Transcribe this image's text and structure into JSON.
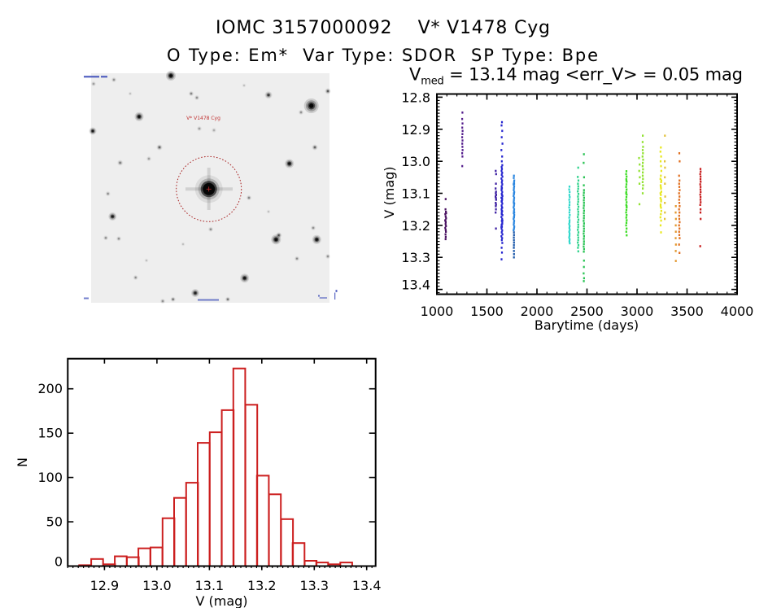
{
  "header": {
    "title": "IOMC 3157000092    V* V1478 Cyg",
    "subtitle": "O Type: Em*  Var Type: SDOR  SP Type: Bpe"
  },
  "image_panel": {
    "target_label": "V* V1478 Cyg",
    "aperture_color": "#a82020",
    "label_color": "#c03030",
    "background_color": "#eeeeee",
    "annotation_color": "#3848b8"
  },
  "chart_data": [
    {
      "type": "scatter",
      "title": {
        "symbol": "V",
        "subscript": "med",
        "text": " = 13.14 mag <err_V> = 0.05 mag"
      },
      "xlabel": "Barytime (days)",
      "ylabel": "V (mag)",
      "xlim": [
        1000,
        4000
      ],
      "ylim": [
        12.79,
        13.415
      ],
      "y_inverted": true,
      "grid": false,
      "xticks": [
        1000,
        1500,
        2000,
        2500,
        3000,
        3500,
        4000
      ],
      "xtick_labels": [
        "1000",
        "1500",
        "2000",
        "2500",
        "3000",
        "3500",
        "4000"
      ],
      "x_minor_step": 100,
      "yticks": [
        12.8,
        12.9,
        13.0,
        13.1,
        13.2,
        13.3,
        13.4
      ],
      "ytick_labels": [
        "12.8",
        "12.9",
        "13.0",
        "13.1",
        "13.2",
        "13.3",
        "13.4"
      ],
      "y_minor_step": 0.01,
      "series": [
        {
          "color": "#4a1262",
          "x": [
            1088,
            1086,
            1090,
            1084,
            1088,
            1092,
            1085,
            1089,
            1087,
            1091,
            1084,
            1088,
            1090,
            1086,
            1089,
            1087,
            1093,
            1083
          ],
          "y": [
            13.118,
            13.15,
            13.158,
            13.165,
            13.172,
            13.178,
            13.184,
            13.19,
            13.196,
            13.202,
            13.208,
            13.214,
            13.22,
            13.228,
            13.236,
            13.243,
            13.162,
            13.185
          ]
        },
        {
          "color": "#56208e",
          "x": [
            1255,
            1253,
            1256,
            1254,
            1257,
            1255,
            1253,
            1256,
            1254,
            1255,
            1257,
            1253,
            1255,
            1254
          ],
          "y": [
            12.848,
            12.868,
            12.882,
            12.895,
            12.905,
            12.915,
            12.925,
            12.935,
            12.945,
            12.955,
            12.965,
            12.975,
            12.985,
            13.015
          ]
        },
        {
          "color": "#3c1ea2",
          "x": [
            1588,
            1592,
            1590,
            1587,
            1591,
            1589,
            1593,
            1586,
            1590,
            1592,
            1588,
            1591,
            1589,
            1590,
            1587,
            1590
          ],
          "y": [
            13.03,
            13.04,
            13.07,
            13.085,
            13.095,
            13.1,
            13.105,
            13.11,
            13.115,
            13.12,
            13.13,
            13.135,
            13.14,
            13.15,
            13.16,
            13.21
          ]
        },
        {
          "color": "#2626d0",
          "x": [
            1650,
            1646,
            1653,
            1648,
            1655,
            1645,
            1652,
            1649,
            1654,
            1647,
            1650,
            1646,
            1653,
            1648,
            1655,
            1645,
            1652,
            1649,
            1654,
            1647,
            1650,
            1646,
            1653,
            1648,
            1655,
            1645,
            1652,
            1649,
            1654,
            1647,
            1650,
            1646,
            1653,
            1648,
            1655,
            1645,
            1652,
            1649,
            1654,
            1647,
            1650,
            1646,
            1653,
            1648,
            1655,
            1645,
            1652,
            1649,
            1654,
            1647,
            1650,
            1646,
            1653,
            1648,
            1655,
            1645,
            1652,
            1649,
            1654,
            1647,
            1650,
            1646
          ],
          "y": [
            12.878,
            12.888,
            12.905,
            12.925,
            12.945,
            12.965,
            12.985,
            13.0,
            13.012,
            13.018,
            13.024,
            13.03,
            13.036,
            13.042,
            13.048,
            13.054,
            13.06,
            13.066,
            13.072,
            13.078,
            13.084,
            13.09,
            13.096,
            13.102,
            13.108,
            13.114,
            13.12,
            13.126,
            13.132,
            13.138,
            13.144,
            13.15,
            13.156,
            13.162,
            13.168,
            13.174,
            13.18,
            13.186,
            13.192,
            13.198,
            13.204,
            13.21,
            13.216,
            13.222,
            13.228,
            13.234,
            13.24,
            13.246,
            13.255,
            13.085,
            13.105,
            13.125,
            13.145,
            13.165,
            13.185,
            13.205,
            13.115,
            13.155,
            13.195,
            13.27,
            13.285,
            13.306
          ]
        },
        {
          "color": "#2a86e0",
          "x": [
            1770,
            1768,
            1773,
            1771,
            1767,
            1772,
            1770,
            1768,
            1773,
            1771,
            1767,
            1772,
            1770,
            1768,
            1773,
            1771,
            1767,
            1772,
            1770,
            1768,
            1773,
            1771,
            1767,
            1772,
            1770,
            1768,
            1773,
            1771,
            1767,
            1772,
            1770,
            1768,
            1773,
            1771
          ],
          "y": [
            13.045,
            13.052,
            13.06,
            13.066,
            13.072,
            13.078,
            13.084,
            13.09,
            13.096,
            13.102,
            13.108,
            13.114,
            13.12,
            13.126,
            13.132,
            13.138,
            13.144,
            13.15,
            13.156,
            13.162,
            13.168,
            13.174,
            13.18,
            13.186,
            13.192,
            13.198,
            13.204,
            13.21,
            13.215,
            13.07,
            13.1,
            13.13,
            13.16,
            13.175
          ]
        },
        {
          "color": "#1c58aa",
          "x": [
            1770,
            1771,
            1769,
            1770,
            1771,
            1770,
            1769,
            1770,
            1771,
            1770
          ],
          "y": [
            13.222,
            13.23,
            13.238,
            13.246,
            13.254,
            13.262,
            13.27,
            13.28,
            13.29,
            13.3
          ]
        },
        {
          "color": "#30d8cc",
          "x": [
            2325,
            2322,
            2327,
            2324,
            2328,
            2323,
            2326,
            2325,
            2322,
            2327,
            2324,
            2328,
            2323,
            2326,
            2325,
            2322,
            2327,
            2324,
            2328,
            2323,
            2326,
            2325,
            2322,
            2327,
            2324,
            2328
          ],
          "y": [
            13.079,
            13.088,
            13.096,
            13.105,
            13.112,
            13.12,
            13.128,
            13.136,
            13.144,
            13.152,
            13.16,
            13.168,
            13.176,
            13.184,
            13.19,
            13.196,
            13.202,
            13.208,
            13.214,
            13.22,
            13.226,
            13.232,
            13.238,
            13.244,
            13.25,
            13.256
          ]
        },
        {
          "color": "#30d28c",
          "x": [
            2412,
            2408,
            2415,
            2410,
            2413,
            2412,
            2408,
            2415,
            2410,
            2413,
            2412,
            2408,
            2415,
            2410,
            2413,
            2412,
            2408,
            2415,
            2410,
            2413,
            2412,
            2408,
            2415,
            2410,
            2413,
            2412,
            2408,
            2415,
            2410,
            2413
          ],
          "y": [
            13.02,
            13.049,
            13.06,
            13.07,
            13.078,
            13.086,
            13.094,
            13.102,
            13.11,
            13.118,
            13.126,
            13.134,
            13.142,
            13.15,
            13.158,
            13.166,
            13.174,
            13.182,
            13.19,
            13.198,
            13.206,
            13.214,
            13.222,
            13.23,
            13.238,
            13.246,
            13.254,
            13.262,
            13.27,
            13.281
          ]
        },
        {
          "color": "#2cc456",
          "x": [
            2469,
            2467,
            2471,
            2468,
            2470,
            2469,
            2467,
            2471,
            2468,
            2470,
            2469,
            2467,
            2471,
            2468,
            2470,
            2469,
            2467,
            2471,
            2468,
            2470,
            2469,
            2467,
            2471,
            2468,
            2470,
            2469,
            2467,
            2471,
            2468,
            2470,
            2469,
            2467,
            2471,
            2468
          ],
          "y": [
            12.978,
            13.005,
            13.05,
            13.075,
            13.09,
            13.098,
            13.106,
            13.114,
            13.122,
            13.13,
            13.138,
            13.146,
            13.154,
            13.162,
            13.17,
            13.178,
            13.186,
            13.194,
            13.202,
            13.21,
            13.218,
            13.226,
            13.234,
            13.242,
            13.25,
            13.258,
            13.266,
            13.274,
            13.282,
            13.31,
            13.33,
            13.35,
            13.365,
            13.374
          ]
        },
        {
          "color": "#3cdc24",
          "x": [
            2894,
            2891,
            2896,
            2893,
            2897,
            2894,
            2891,
            2896,
            2893,
            2897,
            2894,
            2891,
            2896,
            2893,
            2897,
            2894,
            2891,
            2896,
            2893,
            2897,
            2894,
            2891,
            2896,
            2893,
            2897,
            2894,
            2891,
            2896
          ],
          "y": [
            13.031,
            13.04,
            13.048,
            13.056,
            13.064,
            13.072,
            13.08,
            13.088,
            13.096,
            13.104,
            13.112,
            13.12,
            13.128,
            13.136,
            13.144,
            13.152,
            13.16,
            13.168,
            13.176,
            13.184,
            13.192,
            13.2,
            13.21,
            13.22,
            13.231,
            13.06,
            13.1,
            13.14
          ]
        },
        {
          "color": "#92e232",
          "x": [
            3058,
            3056,
            3060,
            3057,
            3059,
            3055,
            3061,
            3058,
            3056,
            3060,
            3058,
            3057,
            3059,
            3056,
            3060,
            3058,
            3057,
            3024,
            3020,
            3026,
            3022,
            3028,
            3024
          ],
          "y": [
            12.92,
            12.94,
            12.955,
            12.965,
            12.975,
            12.985,
            12.995,
            13.005,
            13.015,
            13.025,
            13.035,
            13.045,
            13.055,
            13.065,
            13.075,
            13.085,
            13.1,
            13.134,
            12.99,
            13.01,
            13.03,
            13.05,
            13.07
          ]
        },
        {
          "color": "#e8e81e",
          "x": [
            3238,
            3234,
            3241,
            3236,
            3240,
            3243,
            3238,
            3234,
            3241,
            3236,
            3240,
            3243,
            3238,
            3234,
            3241,
            3236,
            3240,
            3243,
            3238,
            3234,
            3241,
            3236,
            3240,
            3243,
            3238,
            3234,
            3241,
            3236
          ],
          "y": [
            12.957,
            12.97,
            12.985,
            13.0,
            13.015,
            13.03,
            13.045,
            13.055,
            13.065,
            13.075,
            13.085,
            13.095,
            13.105,
            13.115,
            13.125,
            13.135,
            13.145,
            13.155,
            13.165,
            13.175,
            13.185,
            13.2,
            13.222,
            13.06,
            13.08,
            13.1,
            13.12,
            13.14
          ]
        },
        {
          "color": "#e2c23c",
          "x": [
            3279,
            3277,
            3280,
            3278,
            3279,
            3281,
            3278,
            3279,
            3277
          ],
          "y": [
            12.92,
            13.0,
            13.02,
            13.05,
            13.07,
            13.11,
            13.13,
            13.16,
            13.18
          ]
        },
        {
          "color": "#e06e1e",
          "x": [
            3423,
            3426,
            3420,
            3424,
            3421,
            3423,
            3426,
            3420,
            3424,
            3421,
            3423,
            3426,
            3420,
            3424,
            3421,
            3423,
            3426,
            3420,
            3424,
            3421,
            3423,
            3426,
            3420,
            3424
          ],
          "y": [
            12.975,
            13.0,
            13.045,
            13.06,
            13.07,
            13.08,
            13.09,
            13.1,
            13.11,
            13.12,
            13.13,
            13.14,
            13.15,
            13.16,
            13.17,
            13.18,
            13.19,
            13.2,
            13.21,
            13.22,
            13.23,
            13.24,
            13.26,
            13.286
          ]
        },
        {
          "color": "#e2962c",
          "x": [
            3388,
            3386,
            3389,
            3387,
            3388,
            3386,
            3389,
            3387,
            3388
          ],
          "y": [
            13.14,
            13.16,
            13.18,
            13.2,
            13.22,
            13.24,
            13.26,
            13.28,
            13.311
          ]
        },
        {
          "color": "#c81e1e",
          "x": [
            3634,
            3636,
            3632,
            3635,
            3634,
            3636,
            3632,
            3635,
            3634,
            3636,
            3632,
            3635,
            3634,
            3636,
            3632,
            3635,
            3634,
            3636,
            3632
          ],
          "y": [
            13.024,
            13.032,
            13.04,
            13.048,
            13.056,
            13.064,
            13.072,
            13.08,
            13.088,
            13.096,
            13.104,
            13.112,
            13.12,
            13.128,
            13.136,
            13.15,
            13.16,
            13.18,
            13.265
          ]
        }
      ]
    },
    {
      "type": "bar",
      "subtype": "histogram",
      "xlabel": "V (mag)",
      "ylabel": "N",
      "color": "#cc1f1f",
      "bin_width": 0.0226,
      "bin_centers": [
        12.863,
        12.886,
        12.909,
        12.931,
        12.954,
        12.976,
        12.999,
        13.022,
        13.044,
        13.067,
        13.089,
        13.112,
        13.135,
        13.157,
        13.18,
        13.202,
        13.225,
        13.248,
        13.27,
        13.293,
        13.315,
        13.338,
        13.361
      ],
      "counts": [
        1,
        8,
        2,
        11,
        10,
        20,
        21,
        54,
        77,
        94,
        139,
        151,
        176,
        223,
        182,
        102,
        81,
        53,
        26,
        6,
        4,
        2,
        4
      ],
      "xlim": [
        12.83,
        13.417
      ],
      "ylim": [
        0,
        234
      ],
      "grid": false,
      "xticks": [
        12.9,
        13.0,
        13.1,
        13.2,
        13.3,
        13.4
      ],
      "xtick_labels": [
        "12.9",
        "13.0",
        "13.1",
        "13.2",
        "13.3",
        "13.4"
      ],
      "x_minor_step": 0.01,
      "yticks": [
        0,
        50,
        100,
        150,
        200
      ],
      "ytick_labels": [
        "0",
        "50",
        "100",
        "150",
        "200"
      ]
    }
  ]
}
